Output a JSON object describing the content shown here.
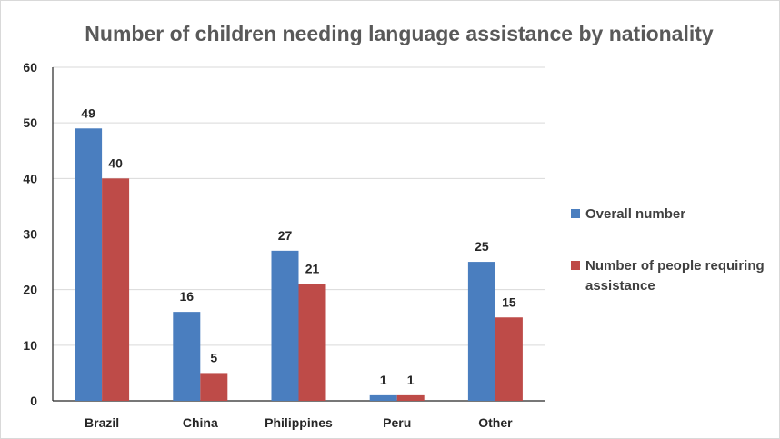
{
  "chart_data": {
    "type": "bar",
    "title": "Number of children needing language assistance by nationality",
    "xlabel": "",
    "ylabel": "",
    "categories": [
      "Brazil",
      "China",
      "Philippines",
      "Peru",
      "Other"
    ],
    "series": [
      {
        "name": "Overall number",
        "values": [
          49,
          16,
          27,
          1,
          25
        ],
        "color": "#4a7ebf"
      },
      {
        "name": "Number of people requiring assistance",
        "values": [
          40,
          5,
          21,
          1,
          15
        ],
        "color": "#be4b48"
      }
    ],
    "ylim": [
      0,
      60
    ],
    "yticks": [
      0,
      10,
      20,
      30,
      40,
      50,
      60
    ],
    "grid": true,
    "legend_position": "right",
    "data_labels": true
  }
}
